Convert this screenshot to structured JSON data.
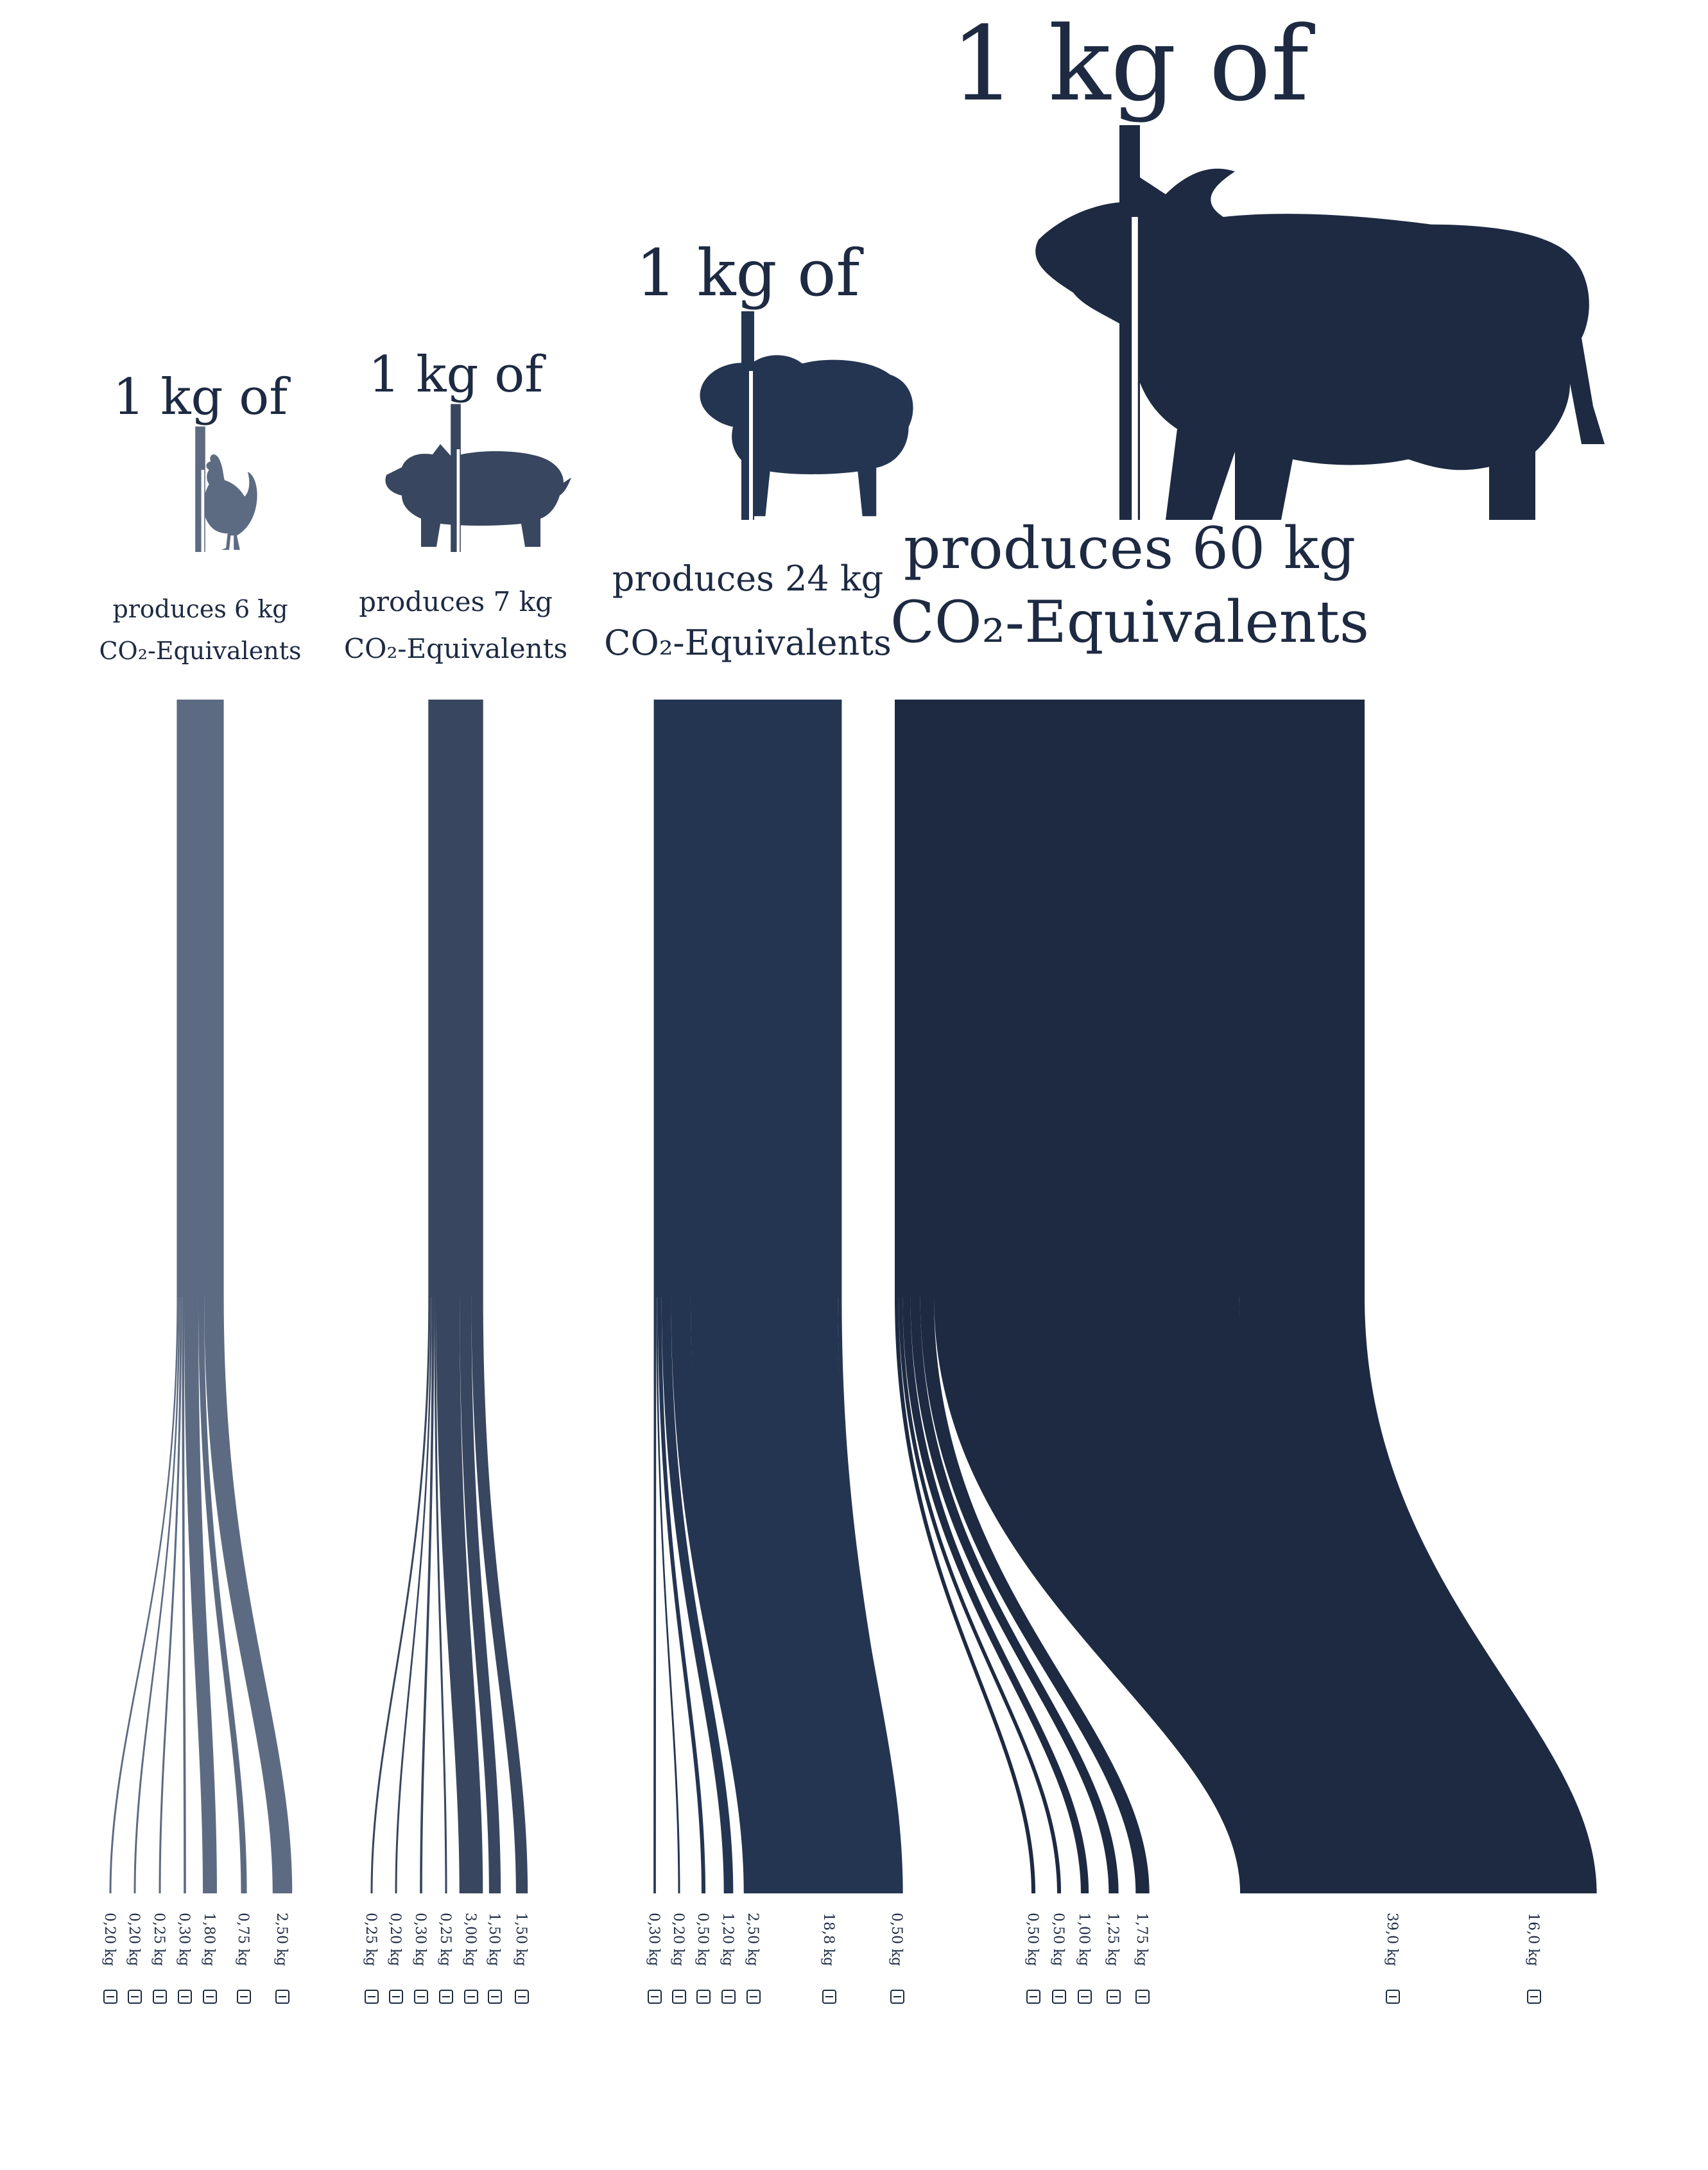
{
  "colors": {
    "chicken": "#5d6b82",
    "pig": "#38465f",
    "sheep": "#243552",
    "cow": "#1d2a42",
    "background": "#ffffff"
  },
  "category_icons": {
    "transport": "train-icon",
    "retail": "shopping-cart-icon",
    "processing": "factory-tools-icon",
    "packaging": "package-bottle-icon",
    "feed": "feed-icon",
    "animal": "methane-icon",
    "farm": "farm-land-icon"
  },
  "chart_data": [
    {
      "type": "sankey",
      "animal": "chicken",
      "animal_icon": "chicken-icon",
      "heading": "1 kg of",
      "subtitle_line1": "produces 6 kg",
      "subtitle_line2": "CO₂-Equivalents",
      "total": 6,
      "flows": [
        {
          "value": 0.2,
          "label": "0,20 kg",
          "icon": "transport"
        },
        {
          "value": 0.2,
          "label": "0,20 kg",
          "icon": "retail"
        },
        {
          "value": 0.25,
          "label": "0,25 kg",
          "icon": "processing"
        },
        {
          "value": 0.3,
          "label": "0,30 kg",
          "icon": "packaging"
        },
        {
          "value": 1.8,
          "label": "1,80 kg",
          "icon": "feed"
        },
        {
          "value": 0.75,
          "label": "0,75 kg",
          "icon": "animal"
        },
        {
          "value": 2.5,
          "label": "2,50 kg",
          "icon": "farm"
        }
      ]
    },
    {
      "type": "sankey",
      "animal": "pig",
      "animal_icon": "pig-icon",
      "heading": "1 kg of",
      "subtitle_line1": "produces 7 kg",
      "subtitle_line2": "CO₂-Equivalents",
      "total": 7,
      "flows": [
        {
          "value": 0.25,
          "label": "0,25 kg",
          "icon": "transport"
        },
        {
          "value": 0.2,
          "label": "0,20 kg",
          "icon": "retail"
        },
        {
          "value": 0.3,
          "label": "0,30 kg",
          "icon": "processing"
        },
        {
          "value": 0.25,
          "label": "0,25 kg",
          "icon": "packaging"
        },
        {
          "value": 3.0,
          "label": "3,00 kg",
          "icon": "feed"
        },
        {
          "value": 1.5,
          "label": "1,50 kg",
          "icon": "animal"
        },
        {
          "value": 1.5,
          "label": "1,50 kg",
          "icon": "farm"
        }
      ]
    },
    {
      "type": "sankey",
      "animal": "sheep",
      "animal_icon": "sheep-icon",
      "heading": "1 kg of",
      "subtitle_line1": "produces 24 kg",
      "subtitle_line2": "CO₂-Equivalents",
      "total": 24,
      "flows": [
        {
          "value": 0.3,
          "label": "0,30 kg",
          "icon": "transport"
        },
        {
          "value": 0.2,
          "label": "0,20 kg",
          "icon": "retail"
        },
        {
          "value": 0.5,
          "label": "0,50 kg",
          "icon": "processing"
        },
        {
          "value": 1.2,
          "label": "1,20 kg",
          "icon": "packaging"
        },
        {
          "value": 2.5,
          "label": "2,50 kg",
          "icon": "feed"
        },
        {
          "value": 18.8,
          "label": "18,8 kg",
          "icon": "animal"
        },
        {
          "value": 0.5,
          "label": "0,50 kg",
          "icon": "farm"
        }
      ]
    },
    {
      "type": "sankey",
      "animal": "cow",
      "animal_icon": "cow-icon",
      "heading": "1 kg of",
      "subtitle_line1": "produces 60 kg",
      "subtitle_line2": "CO₂-Equivalents",
      "total": 60,
      "flows": [
        {
          "value": 0.5,
          "label": "0,50 kg",
          "icon": "transport"
        },
        {
          "value": 0.5,
          "label": "0,50 kg",
          "icon": "retail"
        },
        {
          "value": 1.0,
          "label": "1,00 kg",
          "icon": "processing"
        },
        {
          "value": 1.25,
          "label": "1,25 kg",
          "icon": "packaging"
        },
        {
          "value": 1.75,
          "label": "1,75 kg",
          "icon": "feed"
        },
        {
          "value": 39.0,
          "label": "39,0 kg",
          "icon": "animal"
        },
        {
          "value": 16.0,
          "label": "16,0 kg",
          "icon": "farm"
        }
      ]
    }
  ]
}
